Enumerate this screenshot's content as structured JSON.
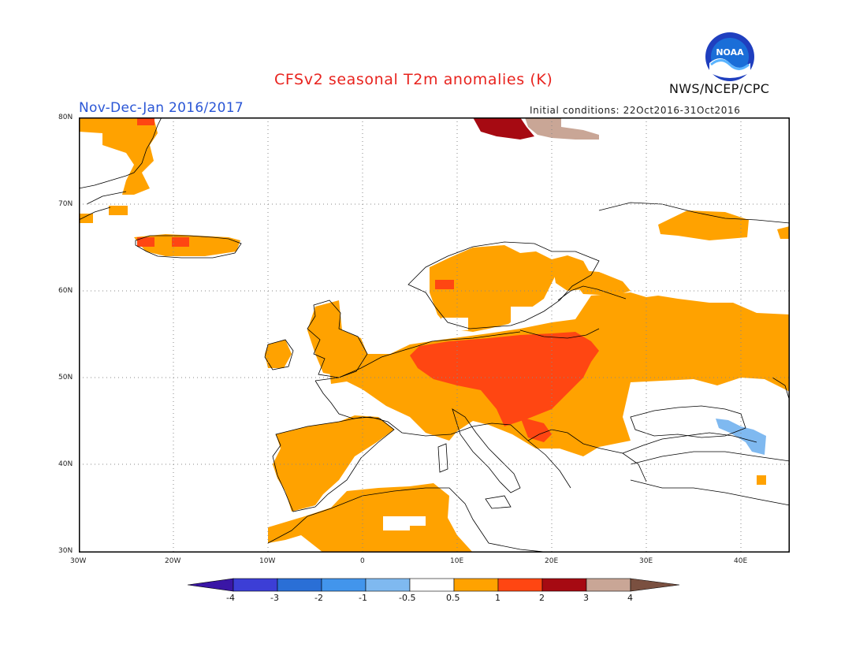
{
  "title": "CFSv2 seasonal T2m anomalies (K)",
  "subtitle": "Nov-Dec-Jan 2016/2017",
  "initial_conditions": "Initial conditions: 22Oct2016-31Oct2016",
  "agency": "NWS/NCEP/CPC",
  "logo_text": "NOAA",
  "colors": {
    "title": "#e8231e",
    "subtitle": "#2a56d6",
    "anom_05_1": "#ffa200",
    "anom_1_2": "#ff4612",
    "anom_2_3": "#a60a12",
    "anom_3_4": "#c9a696",
    "anom_n1_n05": "#7fb9f0"
  },
  "map": {
    "projection": "lat-lon",
    "lon_range": [
      -30,
      45
    ],
    "lat_range": [
      30,
      80
    ],
    "grid": "dotted",
    "lat_ticks": [
      "80N",
      "70N",
      "60N",
      "50N",
      "40N",
      "30N"
    ],
    "lon_ticks": [
      "30W",
      "20W",
      "10W",
      "0",
      "10E",
      "20E",
      "30E",
      "40E"
    ]
  },
  "colorbar": {
    "labels": [
      "-4",
      "-3",
      "-2",
      "-1",
      "-0.5",
      "0.5",
      "1",
      "2",
      "3",
      "4"
    ],
    "colors": [
      "#3a16a6",
      "#3c3ed6",
      "#2a6fd6",
      "#4295ec",
      "#7fb9f0",
      "#ffffff",
      "#ffa200",
      "#ff4612",
      "#a60a12",
      "#c9a696",
      "#7a5040"
    ]
  }
}
